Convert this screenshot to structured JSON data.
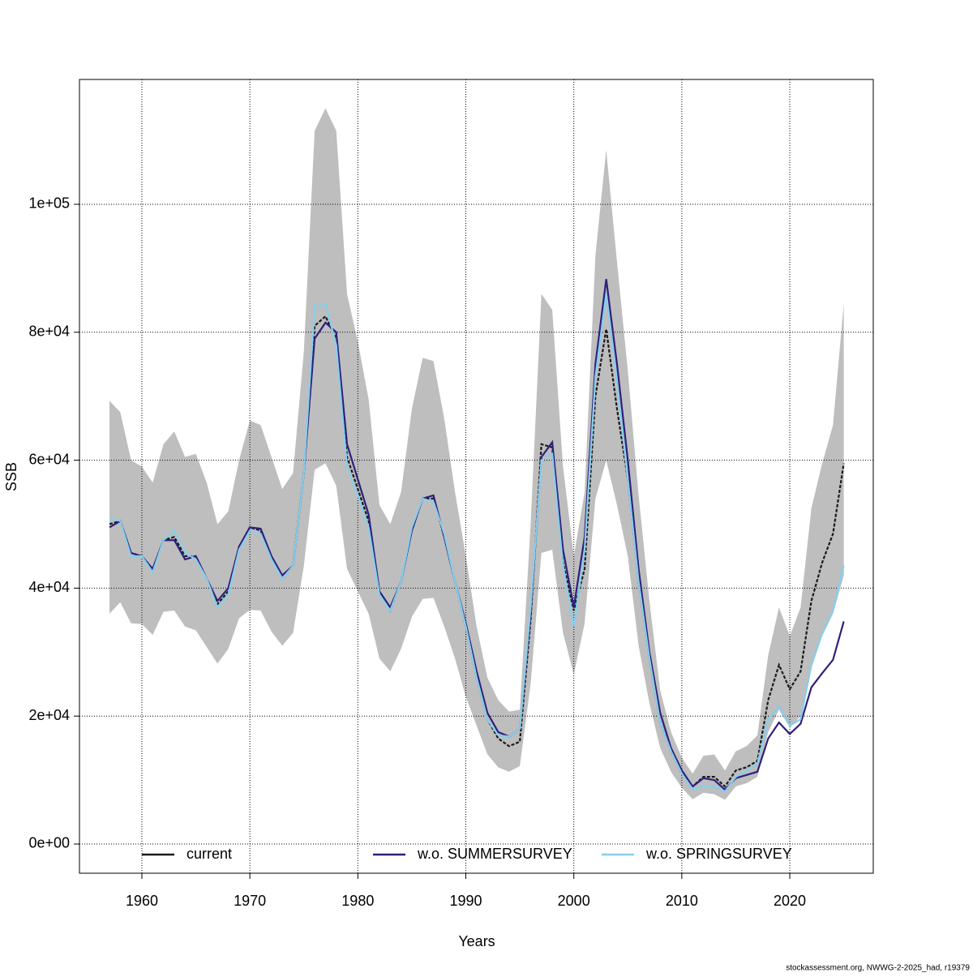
{
  "chart_data": {
    "type": "line",
    "xlabel": "Years",
    "ylabel": "SSB",
    "footnote": "stockassessment.org, NWWG-2-2025_had, r19379",
    "x": [
      1957,
      1958,
      1959,
      1960,
      1961,
      1962,
      1963,
      1964,
      1965,
      1966,
      1967,
      1968,
      1969,
      1970,
      1971,
      1972,
      1973,
      1974,
      1975,
      1976,
      1977,
      1978,
      1979,
      1980,
      1981,
      1982,
      1983,
      1984,
      1985,
      1986,
      1987,
      1988,
      1989,
      1990,
      1991,
      1992,
      1993,
      1994,
      1995,
      1996,
      1997,
      1998,
      1999,
      2000,
      2001,
      2002,
      2003,
      2004,
      2005,
      2006,
      2007,
      2008,
      2009,
      2010,
      2011,
      2012,
      2013,
      2014,
      2015,
      2016,
      2017,
      2018,
      2019,
      2020,
      2021,
      2022,
      2023,
      2024,
      2025
    ],
    "band": {
      "color": "#bebebe",
      "upper": [
        69300,
        67500,
        60000,
        59000,
        56500,
        62500,
        64500,
        60500,
        61000,
        56500,
        50000,
        52000,
        60000,
        66200,
        65500,
        60500,
        55500,
        58000,
        77000,
        111500,
        115000,
        111500,
        86000,
        78500,
        69500,
        53000,
        50000,
        55000,
        68000,
        76000,
        75500,
        66500,
        55000,
        45000,
        34000,
        26000,
        22500,
        20700,
        21000,
        50000,
        86000,
        83500,
        59000,
        45000,
        55000,
        92000,
        108500,
        91000,
        74000,
        54500,
        38000,
        24000,
        17500,
        13500,
        11000,
        13800,
        14000,
        11500,
        14500,
        15300,
        17000,
        29500,
        37000,
        32500,
        37000,
        52500,
        59500,
        65500,
        84500
      ],
      "lower": [
        36000,
        37800,
        34500,
        34400,
        32700,
        36300,
        36500,
        34000,
        33400,
        30800,
        28200,
        30500,
        35300,
        36600,
        36500,
        33200,
        31000,
        33000,
        43500,
        58500,
        59500,
        56000,
        43000,
        39500,
        36000,
        29000,
        27000,
        30500,
        35500,
        38300,
        38500,
        34000,
        29000,
        23000,
        18500,
        14000,
        12000,
        11300,
        12200,
        25000,
        45500,
        46000,
        33000,
        26500,
        34500,
        54000,
        60000,
        53000,
        45000,
        31000,
        22000,
        15000,
        11300,
        8800,
        7000,
        8000,
        7800,
        6900,
        9000,
        9500,
        10500,
        17500,
        21000,
        18200,
        20000,
        27500,
        32500,
        36000,
        42000
      ]
    },
    "series": [
      {
        "name": "current",
        "color": "#1a1a1a",
        "values": [
          50000,
          50500,
          45500,
          45000,
          43000,
          47500,
          48000,
          45000,
          45000,
          41500,
          37500,
          39500,
          46500,
          49500,
          49000,
          45000,
          41500,
          43500,
          58000,
          81000,
          82500,
          79000,
          60500,
          55500,
          50500,
          39500,
          36500,
          41000,
          49000,
          54000,
          54000,
          48000,
          41000,
          34000,
          26000,
          19500,
          16500,
          15300,
          16000,
          35000,
          62500,
          62000,
          44000,
          36500,
          43000,
          70000,
          80500,
          68000,
          57000,
          41000,
          29000,
          19000,
          14500,
          11000,
          9000,
          10500,
          10500,
          9000,
          11500,
          12000,
          13000,
          22500,
          28000,
          24200,
          27000,
          38000,
          44000,
          48500,
          59500
        ]
      },
      {
        "name": "w.o. SUMMERSURVEY",
        "color": "#2e1f7c",
        "values": [
          49500,
          50500,
          45500,
          45000,
          43000,
          47500,
          47500,
          44500,
          45000,
          41500,
          38000,
          40000,
          46500,
          49500,
          49300,
          45000,
          42000,
          43500,
          58000,
          79000,
          81500,
          80000,
          62500,
          57000,
          51500,
          39500,
          37000,
          41000,
          49000,
          54000,
          54500,
          48000,
          41000,
          34500,
          27000,
          20500,
          17500,
          16800,
          18000,
          36000,
          60500,
          62800,
          46000,
          37000,
          48000,
          75000,
          88300,
          75000,
          60000,
          43000,
          30000,
          20500,
          15000,
          11500,
          9000,
          10300,
          10000,
          8500,
          10300,
          10800,
          11300,
          16500,
          19000,
          17200,
          18800,
          24500,
          26700,
          28800,
          34800
        ]
      },
      {
        "name": "w.o. SPRINGSURVEY",
        "color": "#87ceeb",
        "values": [
          51000,
          50500,
          45000,
          45000,
          42500,
          47500,
          49000,
          45500,
          44500,
          41500,
          37000,
          39000,
          46000,
          49000,
          48500,
          44500,
          41500,
          43500,
          58000,
          84000,
          84500,
          78000,
          59000,
          54500,
          49500,
          39000,
          36500,
          41000,
          49500,
          54000,
          53500,
          48500,
          41000,
          34000,
          26000,
          19500,
          17000,
          16800,
          18000,
          37000,
          60000,
          61000,
          43500,
          34000,
          46000,
          73000,
          86000,
          72000,
          57000,
          41000,
          29000,
          19000,
          14500,
          11000,
          8600,
          9000,
          9000,
          8200,
          10500,
          11500,
          12500,
          19500,
          21500,
          18500,
          19500,
          28000,
          33000,
          36500,
          43500
        ]
      }
    ],
    "xlim": [
      1954.22,
      2027.73
    ],
    "xticks": [
      1960,
      1970,
      1980,
      1990,
      2000,
      2010,
      2020
    ],
    "ylim": [
      -4563,
      119518
    ],
    "yticks": [
      {
        "value": 0,
        "label": "0e+00"
      },
      {
        "value": 20000,
        "label": "2e+04"
      },
      {
        "value": 40000,
        "label": "4e+04"
      },
      {
        "value": 60000,
        "label": "6e+04"
      },
      {
        "value": 80000,
        "label": "8e+04"
      },
      {
        "value": 100000,
        "label": "1e+05"
      }
    ],
    "grid": true,
    "legend": "bottom"
  }
}
